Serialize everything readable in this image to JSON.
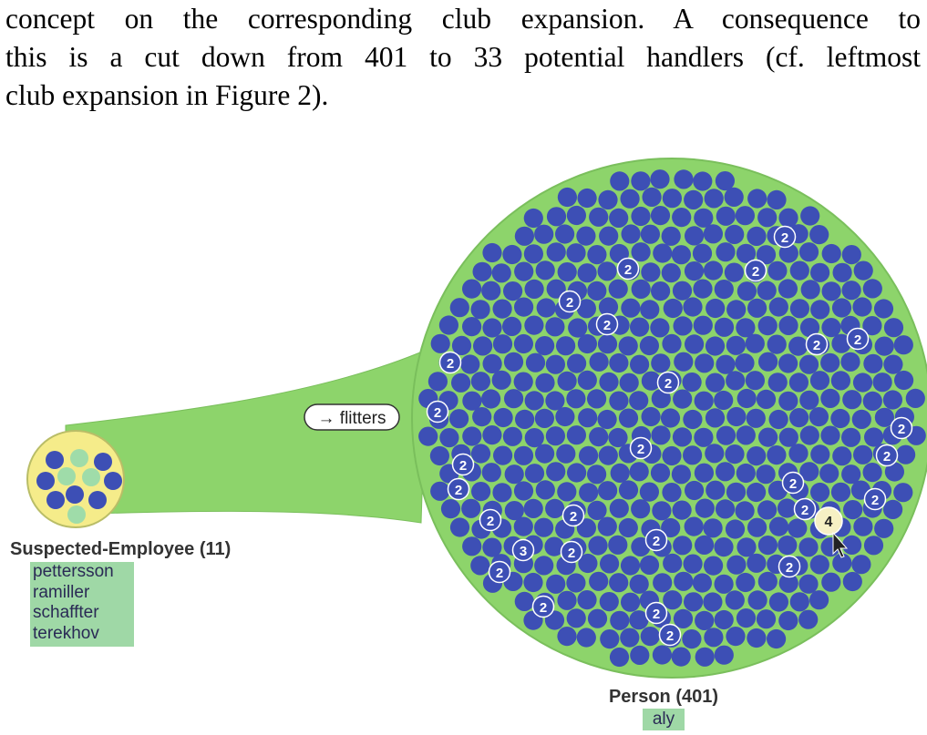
{
  "paragraph": {
    "lines": [
      "concept on the corresponding club expansion.  A consequence to",
      "this is a cut down from 401 to 33 potential handlers (cf. leftmost",
      "club expansion in Figure 2)."
    ]
  },
  "figure": {
    "edge_label": "→ flitters",
    "left_club": {
      "label": "Suspected-Employee (11)",
      "members": [
        "pettersson",
        "ramiller",
        "schaffter",
        "terekhov"
      ]
    },
    "right_club": {
      "label": "Person (401)",
      "members": [
        "aly"
      ]
    },
    "node_counts": [
      "2",
      "2",
      "2",
      "2",
      "2",
      "2",
      "2",
      "2",
      "2",
      "2",
      "2",
      "2",
      "2",
      "2",
      "2",
      "2",
      "2",
      "2",
      "3",
      "2",
      "2",
      "2",
      "2",
      "2",
      "2",
      "2",
      "2",
      "2",
      "4"
    ],
    "colors": {
      "club_fill": "#8dd46b",
      "club_stroke": "#7abf5c",
      "left_club_fill": "#f5ec8a",
      "node": "#3d4fb5",
      "node_light": "#9fdca9",
      "highlight": "#f6f0c4",
      "member_bg": "#9fd8a6"
    }
  }
}
